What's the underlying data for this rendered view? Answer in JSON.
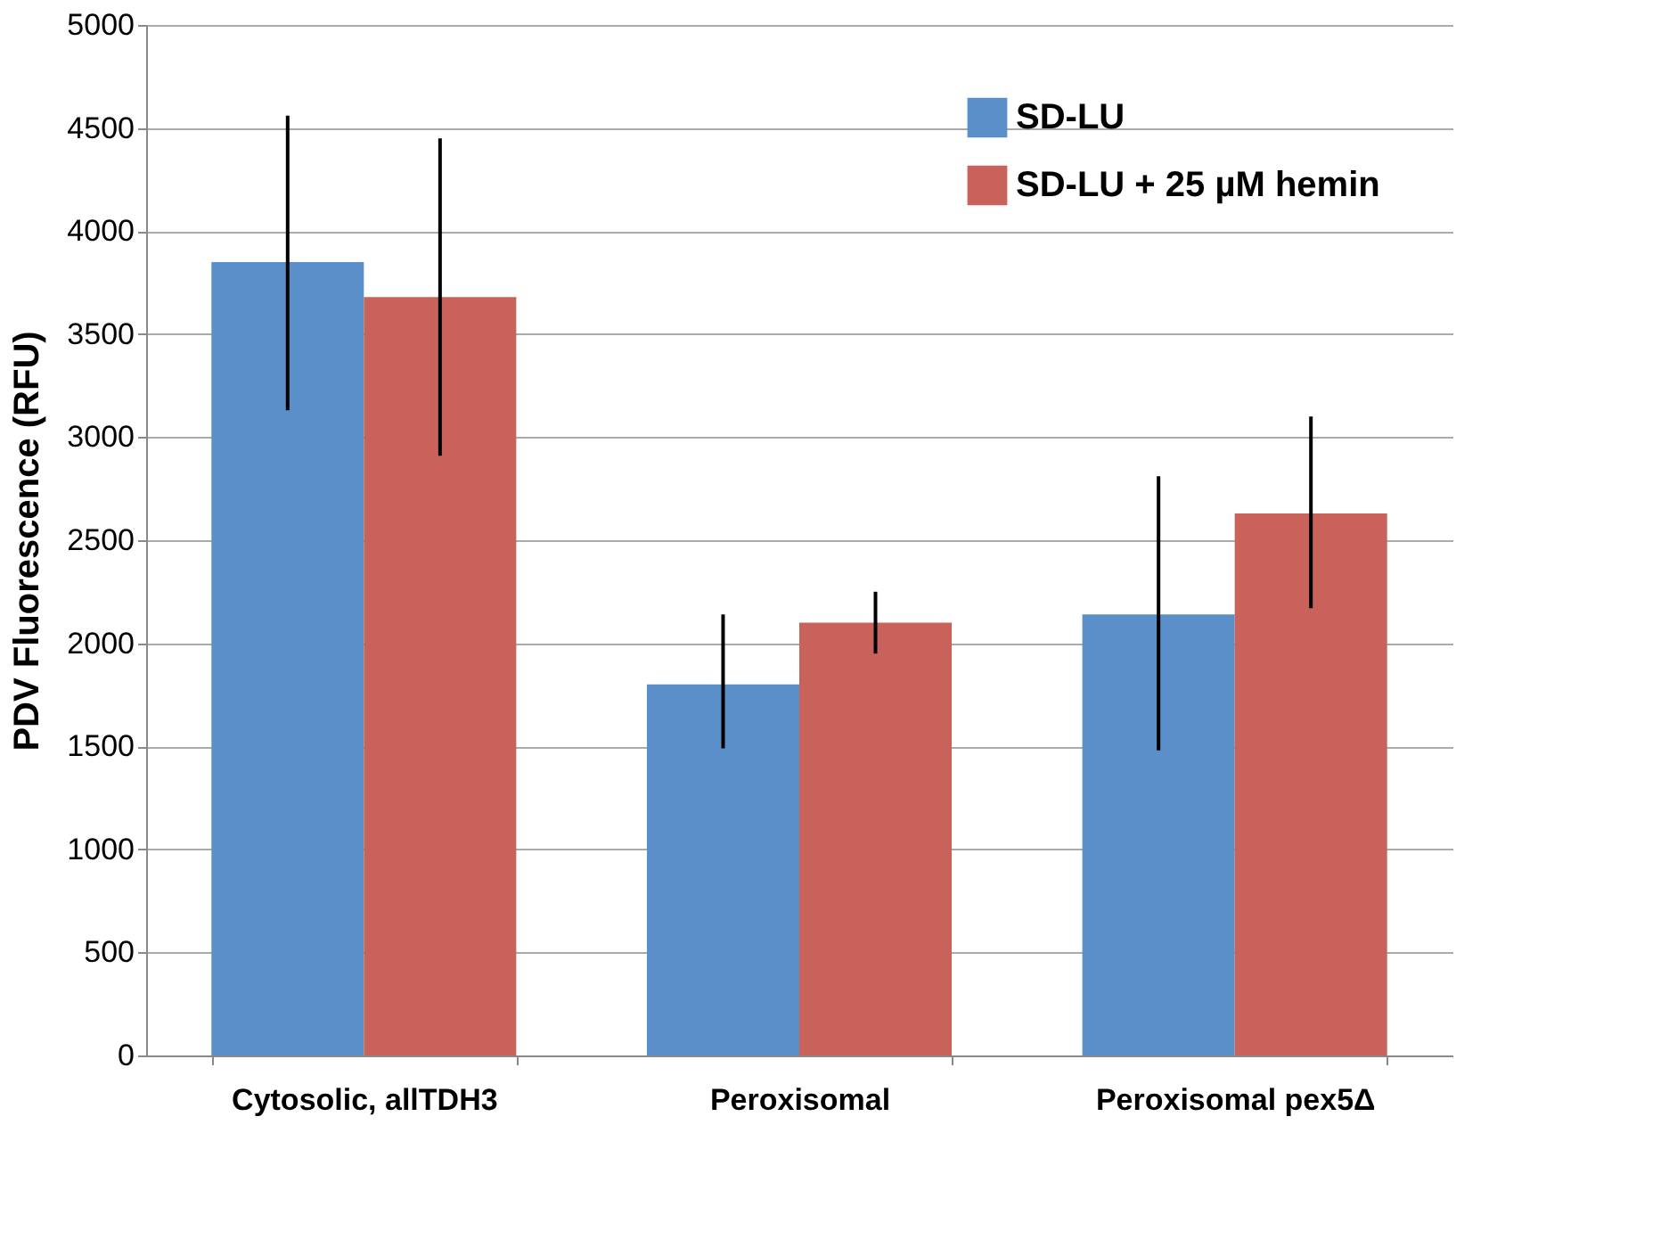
{
  "chart_data": {
    "type": "bar",
    "ylabel": "PDV Fluorescence (RFU)",
    "categories": [
      "Cytosolic, allTDH3",
      "Peroxisomal",
      "Peroxisomal pex5Δ"
    ],
    "series": [
      {
        "name": "SD-LU",
        "color": "#5b8fc9",
        "values": [
          3850,
          1800,
          2140
        ],
        "errors": [
          [
            3130,
            4560
          ],
          [
            1490,
            2140
          ],
          [
            1480,
            2810
          ]
        ]
      },
      {
        "name": "SD-LU + 25 µM hemin",
        "color": "#c9625a",
        "values": [
          3680,
          2100,
          2630
        ],
        "errors": [
          [
            2910,
            4450
          ],
          [
            1950,
            2250
          ],
          [
            2170,
            3100
          ]
        ]
      }
    ],
    "ylim": [
      0,
      5000
    ],
    "yticks": [
      0,
      500,
      1000,
      1500,
      2000,
      2500,
      3000,
      3500,
      4000,
      4500,
      5000
    ],
    "grid": "y",
    "legend": "top right"
  }
}
